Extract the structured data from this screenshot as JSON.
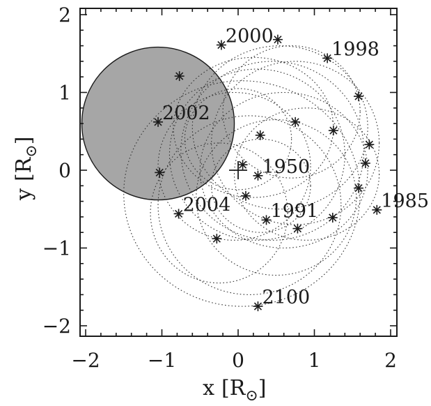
{
  "chart_data": {
    "type": "scatter",
    "title": "",
    "xlabel": "x",
    "ylabel": "y",
    "unit_symbol": "R",
    "xlim": [
      -2.1,
      2.1
    ],
    "ylim": [
      -2.1,
      2.1
    ],
    "xticks": [
      -2,
      -1,
      0,
      1,
      2
    ],
    "yticks": [
      -2,
      -1,
      0,
      1,
      2
    ],
    "xtick_labels": [
      "−2",
      "−1",
      "0",
      "1",
      "2"
    ],
    "ytick_labels": [
      "−2",
      "−1",
      "0",
      "1",
      "2"
    ],
    "grid": false,
    "shaded_disk": {
      "center": [
        -1.05,
        0.6
      ],
      "radius": 1.0,
      "color": "#a6a6a6"
    },
    "center_marker": [
      0,
      0
    ],
    "points": [
      {
        "x": -0.22,
        "y": 1.61,
        "label": "2000"
      },
      {
        "x": 0.52,
        "y": 1.68,
        "label": ""
      },
      {
        "x": 1.17,
        "y": 1.44,
        "label": "1998"
      },
      {
        "x": -0.77,
        "y": 1.21,
        "label": ""
      },
      {
        "x": 1.58,
        "y": 0.95,
        "label": ""
      },
      {
        "x": -1.05,
        "y": 0.62,
        "label": "2002"
      },
      {
        "x": 0.75,
        "y": 0.62,
        "label": ""
      },
      {
        "x": 1.25,
        "y": 0.51,
        "label": ""
      },
      {
        "x": 0.29,
        "y": 0.45,
        "label": ""
      },
      {
        "x": 1.72,
        "y": 0.33,
        "label": ""
      },
      {
        "x": 1.67,
        "y": 0.09,
        "label": ""
      },
      {
        "x": 0.06,
        "y": 0.07,
        "label": ""
      },
      {
        "x": -1.03,
        "y": -0.03,
        "label": ""
      },
      {
        "x": 0.26,
        "y": -0.07,
        "label": "1950"
      },
      {
        "x": 1.58,
        "y": -0.23,
        "label": ""
      },
      {
        "x": 0.1,
        "y": -0.33,
        "label": ""
      },
      {
        "x": 1.82,
        "y": -0.51,
        "label": "1985"
      },
      {
        "x": -0.78,
        "y": -0.56,
        "label": "2004"
      },
      {
        "x": 1.24,
        "y": -0.61,
        "label": ""
      },
      {
        "x": 0.37,
        "y": -0.64,
        "label": "1991"
      },
      {
        "x": 0.78,
        "y": -0.75,
        "label": ""
      },
      {
        "x": -0.28,
        "y": -0.88,
        "label": ""
      },
      {
        "x": 0.26,
        "y": -1.75,
        "label": "2100"
      }
    ],
    "orbits": [
      {
        "cx": 0.55,
        "cy": 0.55,
        "rx": 1.15,
        "ry": 1.05
      },
      {
        "cx": 0.75,
        "cy": 0.35,
        "rx": 1.1,
        "ry": 1.05
      },
      {
        "cx": 0.45,
        "cy": 0.25,
        "rx": 1.2,
        "ry": 1.15
      },
      {
        "cx": 0.25,
        "cy": 0.2,
        "rx": 1.15,
        "ry": 1.1
      },
      {
        "cx": 0.6,
        "cy": 0.0,
        "rx": 1.1,
        "ry": 1.0
      },
      {
        "cx": 0.9,
        "cy": -0.05,
        "rx": 0.95,
        "ry": 0.85
      },
      {
        "cx": -0.05,
        "cy": 0.05,
        "rx": 1.0,
        "ry": 0.95
      },
      {
        "cx": 0.15,
        "cy": -0.45,
        "rx": 1.2,
        "ry": 1.15
      },
      {
        "cx": 0.5,
        "cy": -0.35,
        "rx": 1.05,
        "ry": 1.0
      },
      {
        "cx": 0.3,
        "cy": -0.2,
        "rx": 0.65,
        "ry": 0.6
      },
      {
        "cx": 0.0,
        "cy": 0.4,
        "rx": 0.7,
        "ry": 0.65
      },
      {
        "cx": -0.25,
        "cy": -0.55,
        "rx": 0.9,
        "ry": 0.9
      },
      {
        "cx": 0.7,
        "cy": 0.75,
        "rx": 0.9,
        "ry": 0.85
      },
      {
        "cx": 0.05,
        "cy": -0.3,
        "rx": 1.55,
        "ry": 1.45
      },
      {
        "cx": 0.2,
        "cy": 0.55,
        "rx": 1.05,
        "ry": 0.9
      }
    ],
    "annotations": [
      "2000",
      "1998",
      "2002",
      "1950",
      "1985",
      "2004",
      "1991",
      "2100"
    ]
  }
}
